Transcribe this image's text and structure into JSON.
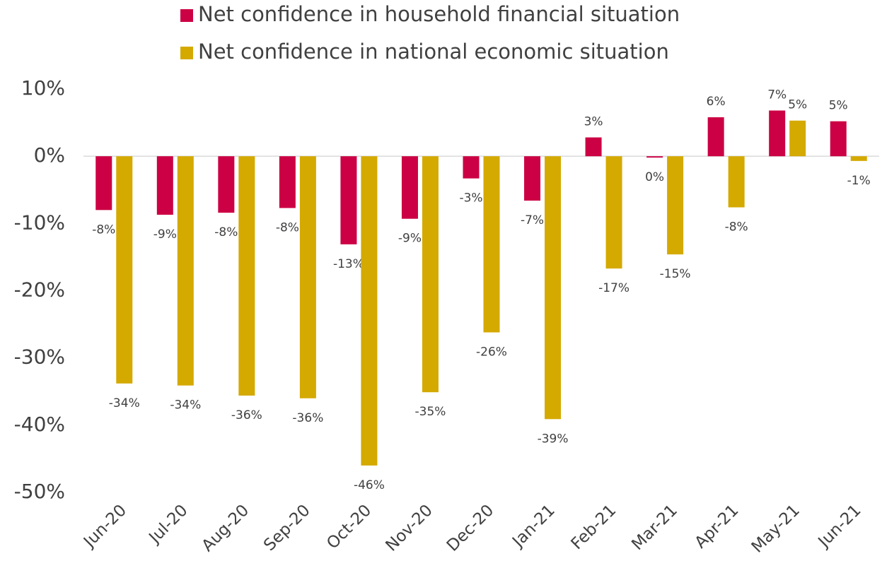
{
  "chart_data": {
    "type": "bar",
    "categories": [
      "Jun-20",
      "Jul-20",
      "Aug-20",
      "Sep-20",
      "Oct-20",
      "Nov-20",
      "Dec-20",
      "Jan-21",
      "Feb-21",
      "Mar-21",
      "Apr-21",
      "May-21",
      "Jun-21"
    ],
    "series": [
      {
        "name": "Net confidence in household financial situation",
        "color": "#cc0044",
        "values": [
          -8.0,
          -8.7,
          -8.4,
          -7.7,
          -13.1,
          -9.3,
          -3.3,
          -6.6,
          2.8,
          -0.2,
          5.8,
          6.8,
          5.2
        ],
        "value_labels": [
          "-8%",
          "-9%",
          "-8%",
          "-8%",
          "-13%",
          "-9%",
          "-3%",
          "-7%",
          "3%",
          "0%",
          "6%",
          "7%",
          "5%"
        ]
      },
      {
        "name": "Net confidence in national economic situation",
        "color": "#d4a900",
        "values": [
          -33.8,
          -34.1,
          -35.6,
          -36.0,
          -46.0,
          -35.1,
          -26.2,
          -39.1,
          -16.7,
          -14.6,
          -7.6,
          5.3,
          -0.7
        ],
        "value_labels": [
          "-34%",
          "-34%",
          "-36%",
          "-36%",
          "-46%",
          "-35%",
          "-26%",
          "-39%",
          "-17%",
          "-15%",
          "-8%",
          "5%",
          "-1%"
        ]
      }
    ],
    "ylim": [
      -50,
      10
    ],
    "yticks": [
      {
        "value": -50,
        "label": "-50%"
      },
      {
        "value": -40,
        "label": "-40%"
      },
      {
        "value": -30,
        "label": "-30%"
      },
      {
        "value": -20,
        "label": "-20%"
      },
      {
        "value": -10,
        "label": "-10%"
      },
      {
        "value": 0,
        "label": "0%"
      },
      {
        "value": 10,
        "label": "10%"
      }
    ],
    "grid": false,
    "legend": "top"
  }
}
